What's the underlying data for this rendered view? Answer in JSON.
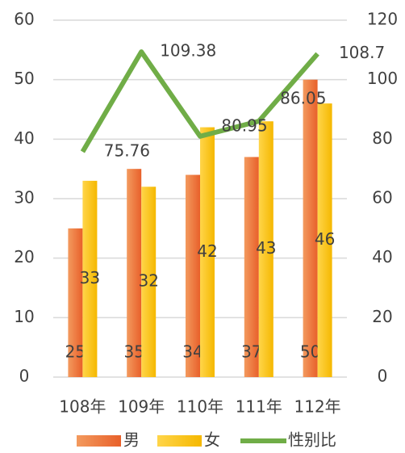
{
  "chart_data": {
    "type": "bar",
    "categories": [
      "108年",
      "109年",
      "110年",
      "111年",
      "112年"
    ],
    "series": [
      {
        "name": "男",
        "color": "#ee7a35",
        "values": [
          25,
          35,
          34,
          37,
          50
        ]
      },
      {
        "name": "女",
        "color": "#ffc000",
        "values": [
          33,
          32,
          42,
          43,
          46
        ]
      },
      {
        "name": "性别比",
        "color": "#70ad47",
        "type": "line",
        "axis": "y2",
        "values": [
          75.76,
          109.38,
          80.95,
          86.05,
          108.7
        ]
      }
    ],
    "ylim": [
      0,
      60
    ],
    "yticks": [
      0,
      10,
      20,
      30,
      40,
      50,
      60
    ],
    "y2lim": [
      0,
      120
    ],
    "y2ticks": [
      0,
      20,
      40,
      60,
      80,
      100,
      120
    ],
    "grid": true,
    "legend": "bottom"
  }
}
